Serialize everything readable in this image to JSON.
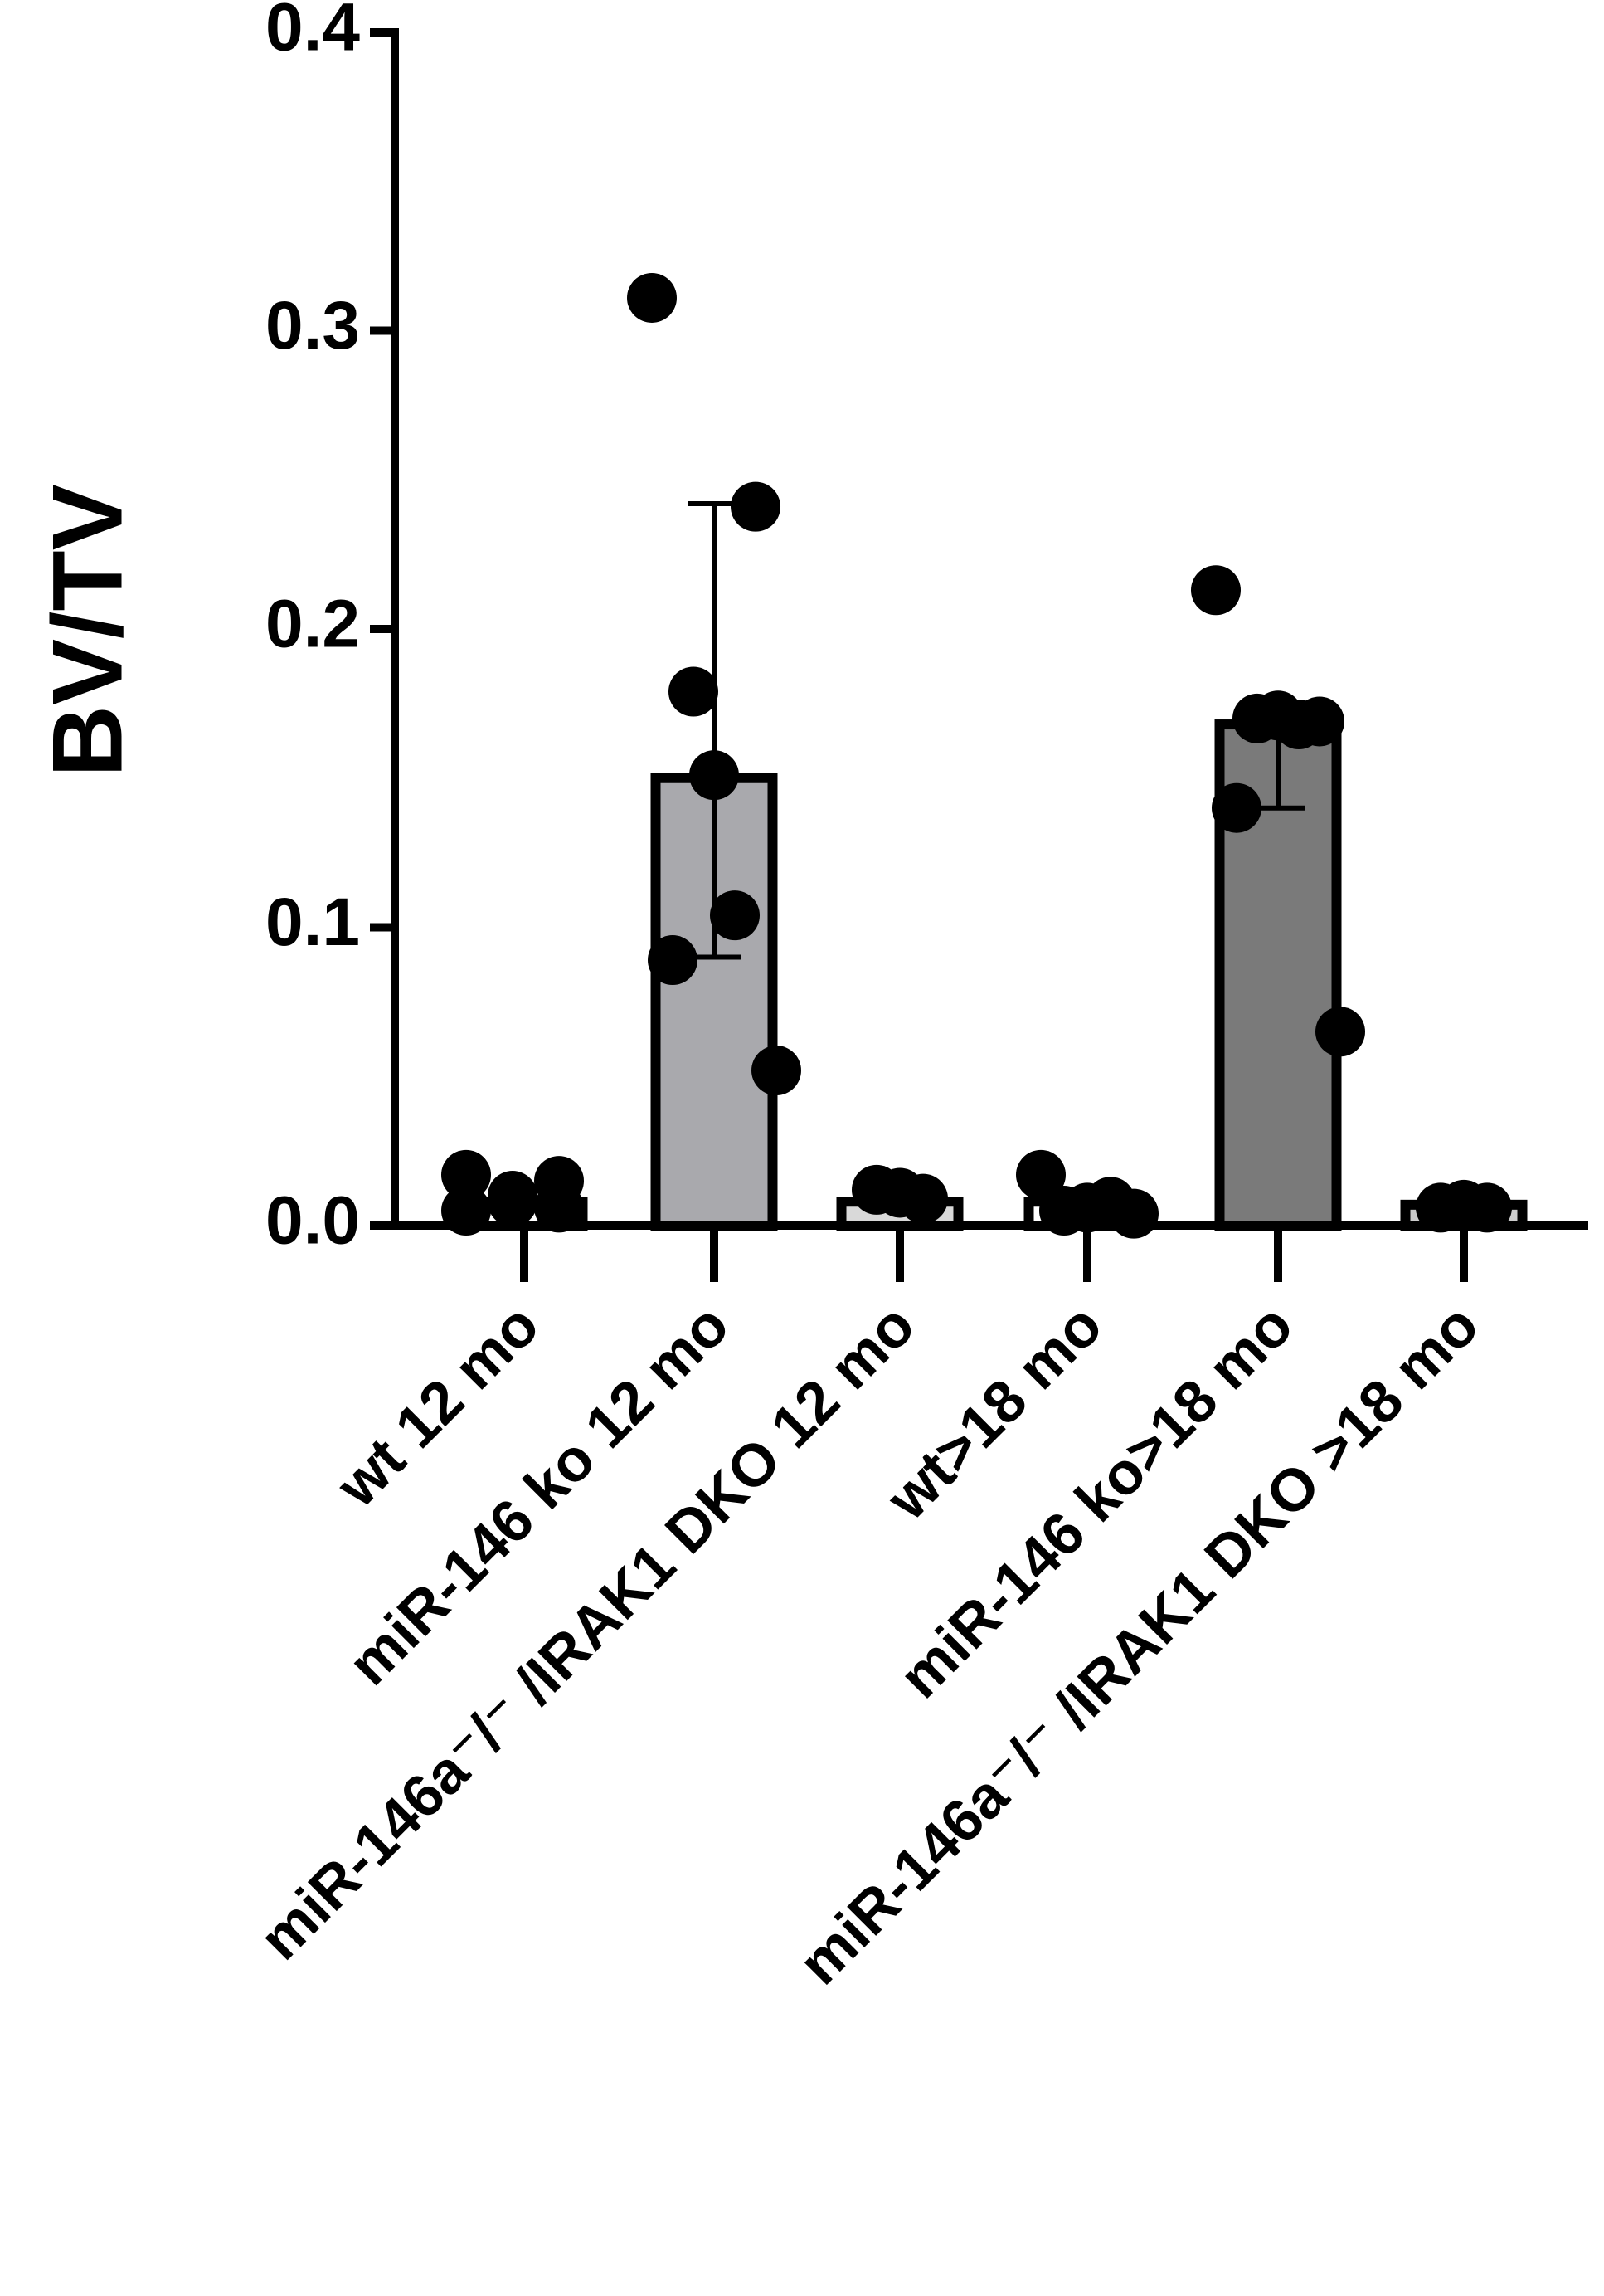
{
  "chart_data": {
    "type": "bar_dot",
    "ylabel": "BV/TV",
    "categories": [
      "wt 12 mo",
      "miR-146 ko 12 mo",
      "miR-146a⁻/⁻ /IRAK1 DKO 12 mo",
      "wt>18 mo",
      "miR-146 ko>18 mo",
      "miR-146a⁻/⁻ /IRAK1 DKO >18 mo"
    ],
    "values": [
      0.008,
      0.15,
      0.008,
      0.008,
      0.168,
      0.007
    ],
    "colors": [
      "#ffffff",
      "#a9a9ad",
      "#d9d9d9",
      "#ffffff",
      "#7a7a7a",
      "#cccccc"
    ],
    "error_low": [
      null,
      0.09,
      null,
      null,
      0.14,
      null
    ],
    "error_high": [
      null,
      0.242,
      null,
      null,
      0.175,
      null
    ],
    "points": [
      [
        0.017,
        0.015,
        0.01,
        0.008,
        0.006,
        0.005
      ],
      [
        0.311,
        0.241,
        0.179,
        0.151,
        0.104,
        0.089,
        0.052
      ],
      [
        0.012,
        0.011,
        0.009
      ],
      [
        0.017,
        0.008,
        0.006,
        0.005,
        0.004
      ],
      [
        0.213,
        0.169,
        0.17,
        0.171,
        0.168,
        0.14,
        0.065
      ],
      [
        0.006,
        0.007,
        0.006
      ]
    ],
    "ylim": [
      0,
      0.4
    ],
    "yticks": [
      {
        "value": 0,
        "label": "0.0"
      },
      {
        "value": 0.1,
        "label": "0.1"
      },
      {
        "value": 0.2,
        "label": "0.2"
      },
      {
        "value": 0.3,
        "label": "0.3"
      },
      {
        "value": 0.4,
        "label": "0.4"
      }
    ]
  }
}
